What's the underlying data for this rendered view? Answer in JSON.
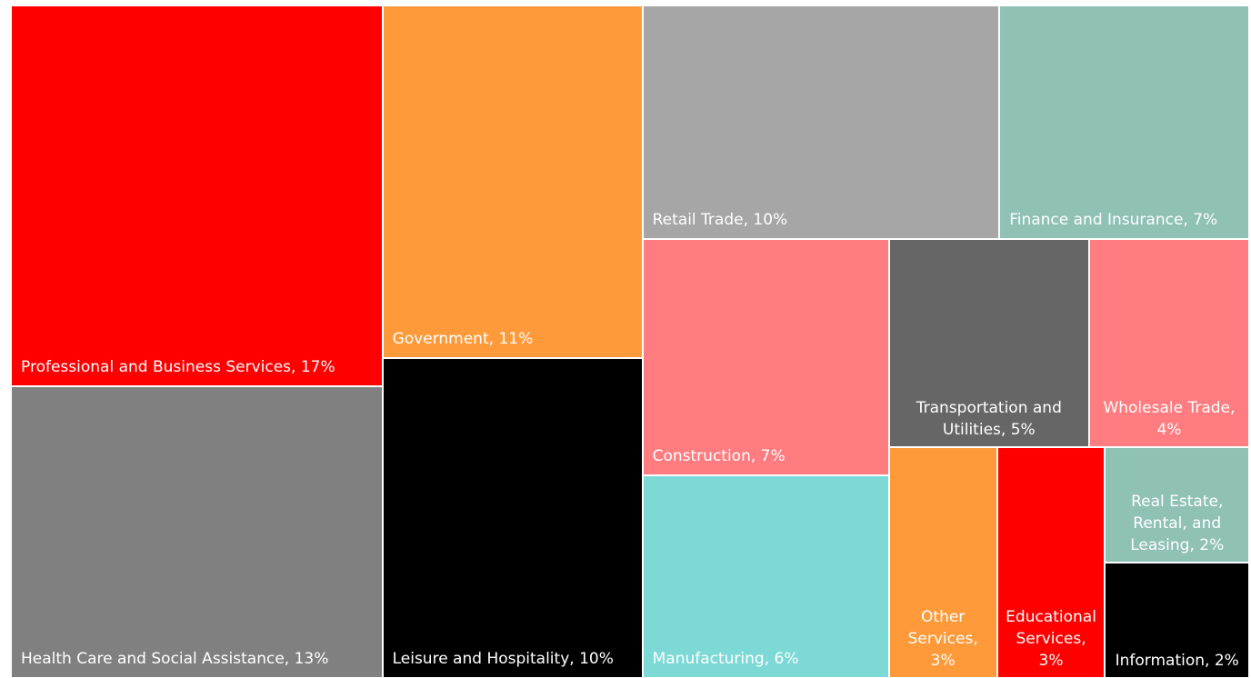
{
  "chart_data": {
    "type": "treemap",
    "categories": [
      "Professional and Business Services",
      "Health Care and Social Assistance",
      "Government",
      "Leisure and Hospitality",
      "Retail Trade",
      "Finance and Insurance",
      "Construction",
      "Manufacturing",
      "Transportation and Utilities",
      "Wholesale Trade",
      "Other Services",
      "Educational Services",
      "Real Estate, Rental, and Leasing",
      "Information"
    ],
    "values": [
      17,
      13,
      11,
      10,
      10,
      7,
      7,
      6,
      5,
      4,
      3,
      3,
      2,
      2
    ],
    "value_labels": [
      "17%",
      "13%",
      "11%",
      "10%",
      "10%",
      "7%",
      "7%",
      "6%",
      "5%",
      "4%",
      "3%",
      "3%",
      "2%",
      "2%"
    ],
    "colors": [
      "#ff0000",
      "#808080",
      "#ff9a3a",
      "#000000",
      "#a6a6a6",
      "#8fc1b5",
      "#ff7c80",
      "#7dd9d6",
      "#666666",
      "#ff7c80",
      "#ff9a3a",
      "#ff0000",
      "#8fc1b5",
      "#000000"
    ]
  }
}
